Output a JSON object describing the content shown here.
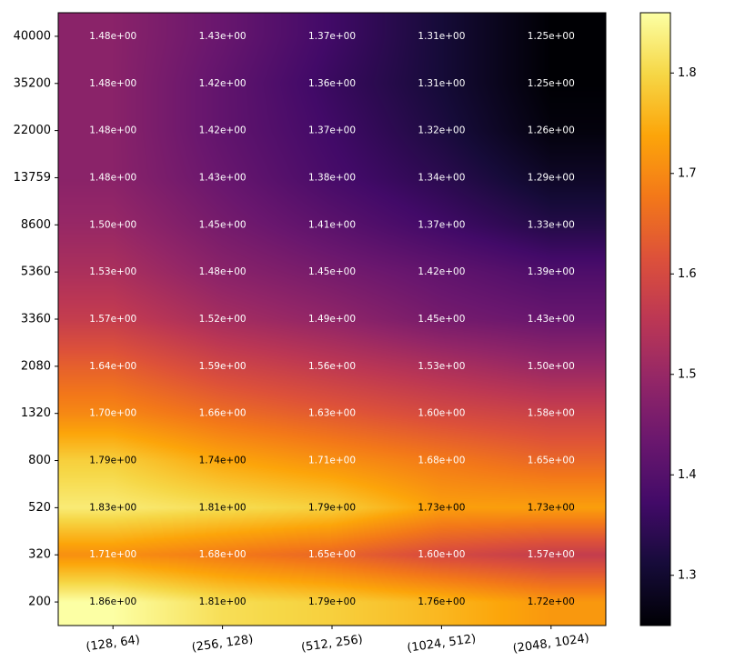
{
  "chart_data": {
    "type": "heatmap",
    "title": "",
    "xlabel": "",
    "ylabel": "",
    "x_categories": [
      "(128, 64)",
      "(256, 128)",
      "(512, 256)",
      "(1024, 512)",
      "(2048, 1024)"
    ],
    "y_categories": [
      "40000",
      "35200",
      "22000",
      "13759",
      "8600",
      "5360",
      "3360",
      "2080",
      "1320",
      "800",
      "520",
      "320",
      "200"
    ],
    "values": [
      [
        1.48,
        1.43,
        1.37,
        1.31,
        1.25
      ],
      [
        1.48,
        1.42,
        1.36,
        1.31,
        1.25
      ],
      [
        1.48,
        1.42,
        1.37,
        1.32,
        1.26
      ],
      [
        1.48,
        1.43,
        1.38,
        1.34,
        1.29
      ],
      [
        1.5,
        1.45,
        1.41,
        1.37,
        1.33
      ],
      [
        1.53,
        1.48,
        1.45,
        1.42,
        1.39
      ],
      [
        1.57,
        1.52,
        1.49,
        1.45,
        1.43
      ],
      [
        1.64,
        1.59,
        1.56,
        1.53,
        1.5
      ],
      [
        1.7,
        1.66,
        1.63,
        1.6,
        1.58
      ],
      [
        1.79,
        1.74,
        1.71,
        1.68,
        1.65
      ],
      [
        1.83,
        1.81,
        1.79,
        1.73,
        1.73
      ],
      [
        1.71,
        1.68,
        1.65,
        1.6,
        1.57
      ],
      [
        1.86,
        1.81,
        1.79,
        1.76,
        1.72
      ]
    ],
    "cell_labels": [
      [
        "1.48e+00",
        "1.43e+00",
        "1.37e+00",
        "1.31e+00",
        "1.25e+00"
      ],
      [
        "1.48e+00",
        "1.42e+00",
        "1.36e+00",
        "1.31e+00",
        "1.25e+00"
      ],
      [
        "1.48e+00",
        "1.42e+00",
        "1.37e+00",
        "1.32e+00",
        "1.26e+00"
      ],
      [
        "1.48e+00",
        "1.43e+00",
        "1.38e+00",
        "1.34e+00",
        "1.29e+00"
      ],
      [
        "1.50e+00",
        "1.45e+00",
        "1.41e+00",
        "1.37e+00",
        "1.33e+00"
      ],
      [
        "1.53e+00",
        "1.48e+00",
        "1.45e+00",
        "1.42e+00",
        "1.39e+00"
      ],
      [
        "1.57e+00",
        "1.52e+00",
        "1.49e+00",
        "1.45e+00",
        "1.43e+00"
      ],
      [
        "1.64e+00",
        "1.59e+00",
        "1.56e+00",
        "1.53e+00",
        "1.50e+00"
      ],
      [
        "1.70e+00",
        "1.66e+00",
        "1.63e+00",
        "1.60e+00",
        "1.58e+00"
      ],
      [
        "1.79e+00",
        "1.74e+00",
        "1.71e+00",
        "1.68e+00",
        "1.65e+00"
      ],
      [
        "1.83e+00",
        "1.81e+00",
        "1.79e+00",
        "1.73e+00",
        "1.73e+00"
      ],
      [
        "1.71e+00",
        "1.68e+00",
        "1.65e+00",
        "1.60e+00",
        "1.57e+00"
      ],
      [
        "1.86e+00",
        "1.81e+00",
        "1.79e+00",
        "1.76e+00",
        "1.72e+00"
      ]
    ],
    "colormap": "inferno",
    "interpolation": "bilinear",
    "colorbar": {
      "vmin": 1.25,
      "vmax": 1.86,
      "ticks": [
        1.3,
        1.4,
        1.5,
        1.6,
        1.7,
        1.8
      ],
      "tick_labels": [
        "1.3",
        "1.4",
        "1.5",
        "1.6",
        "1.7",
        "1.8"
      ],
      "placement": "right"
    },
    "label_dark_threshold": 1.72,
    "label_light_color": "#ffffff",
    "label_dark_color": "#000000"
  }
}
